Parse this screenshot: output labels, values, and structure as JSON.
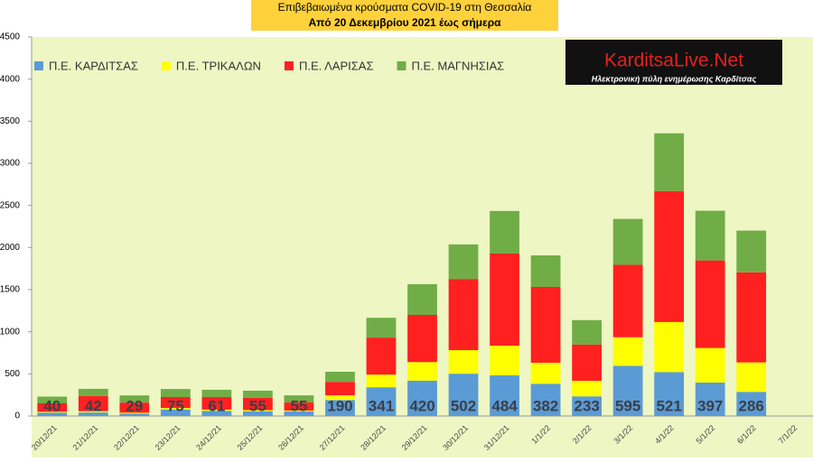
{
  "chart_data": {
    "type": "stacked-bar",
    "title": "Επιβεβαιωμένα κρούσματα COVID-19 στη Θεσσαλία",
    "subtitle": "Από 20 Δεκεμβρίου 2021 έως σήμερα",
    "logo": {
      "name": "KarditsaLive.Net",
      "tagline": "Ηλεκτρονική πύλη ενημέρωσης Καρδίτσας"
    },
    "categories": [
      "20/12/21",
      "21/12/21",
      "22/12/21",
      "23/12/21",
      "24/12/21",
      "25/12/21",
      "26/12/21",
      "27/12/21",
      "28/12/21",
      "29/12/21",
      "30/12/21",
      "31/12/21",
      "1/1/22",
      "2/1/22",
      "3/1/22",
      "4/1/22",
      "5/1/22",
      "6/1/22",
      "7/1/22"
    ],
    "series": [
      {
        "name": "Π.Ε. ΚΑΡΔΙΤΣΑΣ",
        "color": "#5b9bd5",
        "values": [
          40,
          42,
          29,
          75,
          61,
          55,
          55,
          190,
          341,
          420,
          502,
          484,
          382,
          233,
          595,
          521,
          397,
          286,
          null
        ]
      },
      {
        "name": "Π.Ε. ΤΡΙΚΑΛΩΝ",
        "color": "#ffff00",
        "values": [
          10,
          15,
          10,
          20,
          15,
          15,
          10,
          55,
          150,
          220,
          280,
          350,
          250,
          185,
          340,
          595,
          410,
          350,
          null
        ]
      },
      {
        "name": "Π.Ε. ΛΑΡΙΣΑΣ",
        "color": "#ff2020",
        "values": [
          100,
          180,
          120,
          130,
          150,
          145,
          95,
          160,
          440,
          560,
          845,
          1095,
          900,
          430,
          860,
          1555,
          1040,
          1070,
          null
        ]
      },
      {
        "name": "Π.Ε. ΜΑΓΝΗΣΙΑΣ",
        "color": "#70ad47",
        "values": [
          80,
          85,
          85,
          95,
          85,
          85,
          85,
          120,
          235,
          365,
          410,
          505,
          375,
          290,
          545,
          685,
          590,
          495,
          null
        ]
      }
    ],
    "ylim": [
      0,
      4500
    ],
    "yticks": [
      0,
      500,
      1000,
      1500,
      2000,
      2500,
      3000,
      3500,
      4000,
      4500
    ],
    "grid": false
  }
}
